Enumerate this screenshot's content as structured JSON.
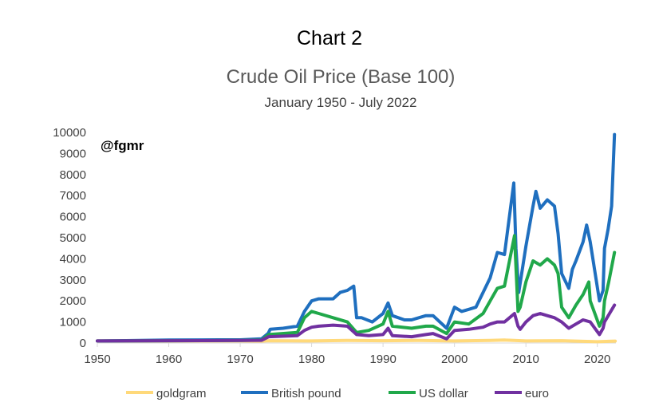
{
  "chart_data": {
    "type": "line",
    "supertitle": "Chart 2",
    "title": "Crude Oil Price (Base 100)",
    "subtitle": "January 1950 - July 2022",
    "annotation": "@fgmr",
    "xlabel": "",
    "ylabel": "",
    "xlim": [
      1950,
      2022.6
    ],
    "ylim": [
      0,
      10000
    ],
    "xticks": [
      1950,
      1960,
      1970,
      1980,
      1990,
      2000,
      2010,
      2020
    ],
    "yticks": [
      0,
      1000,
      2000,
      3000,
      4000,
      5000,
      6000,
      7000,
      8000,
      9000,
      10000
    ],
    "grid": false,
    "legend_position": "bottom",
    "series": [
      {
        "name": "goldgram",
        "color": "#FFD97A",
        "x": [
          1950,
          1960,
          1970,
          1973,
          1974,
          1980,
          1985,
          1990,
          1995,
          2000,
          2005,
          2007,
          2010,
          2015,
          2020,
          2022.5
        ],
        "y": [
          100,
          100,
          100,
          90,
          110,
          100,
          120,
          110,
          120,
          100,
          120,
          140,
          100,
          110,
          60,
          90
        ]
      },
      {
        "name": "British pound",
        "color": "#1F6FBF",
        "x": [
          1950,
          1953,
          1960,
          1967,
          1970,
          1973,
          1973.9,
          1974.2,
          1976,
          1978,
          1979,
          1980,
          1981,
          1983,
          1984,
          1985,
          1985.9,
          1986.3,
          1987,
          1988.5,
          1990,
          1990.7,
          1991.3,
          1993,
          1994,
          1996,
          1997,
          1998.9,
          2000,
          2001,
          2002,
          2003,
          2004,
          2005,
          2006,
          2007,
          2008.3,
          2008.6,
          2009,
          2010,
          2011,
          2011.4,
          2012,
          2013,
          2014,
          2014.5,
          2015,
          2016,
          2016.5,
          2017,
          2018,
          2018.5,
          2019,
          2020.3,
          2020.8,
          2021,
          2021.5,
          2022,
          2022.4
        ],
        "y": [
          100,
          110,
          140,
          150,
          150,
          200,
          450,
          650,
          700,
          800,
          1500,
          2000,
          2100,
          2100,
          2400,
          2500,
          2700,
          1200,
          1200,
          1000,
          1400,
          1900,
          1300,
          1100,
          1100,
          1300,
          1300,
          700,
          1700,
          1500,
          1600,
          1700,
          2400,
          3100,
          4300,
          4200,
          7600,
          4500,
          2400,
          4600,
          6500,
          7200,
          6400,
          6800,
          6500,
          5200,
          3300,
          2600,
          3500,
          3900,
          4800,
          5600,
          4800,
          2000,
          2500,
          4500,
          5400,
          6500,
          9900
        ]
      },
      {
        "name": "US dollar",
        "color": "#20A84A",
        "x": [
          1950,
          1960,
          1970,
          1973,
          1974,
          1978,
          1979,
          1980,
          1981,
          1983,
          1985,
          1986.3,
          1988,
          1990,
          1990.7,
          1991.3,
          1994,
          1996,
          1997,
          1998.9,
          2000,
          2002,
          2004,
          2005,
          2006,
          2007,
          2008.4,
          2008.9,
          2009.2,
          2010,
          2011,
          2012,
          2013,
          2014,
          2014.5,
          2015,
          2016,
          2017,
          2018,
          2018.8,
          2019,
          2020.3,
          2020.8,
          2021,
          2021.6,
          2022.4
        ],
        "y": [
          100,
          110,
          120,
          140,
          400,
          500,
          1200,
          1500,
          1400,
          1200,
          1000,
          500,
          600,
          900,
          1500,
          800,
          700,
          800,
          800,
          450,
          1000,
          900,
          1400,
          2000,
          2600,
          2700,
          5100,
          1500,
          1700,
          2900,
          3900,
          3700,
          4000,
          3700,
          3300,
          1700,
          1200,
          1800,
          2300,
          2900,
          2000,
          800,
          1200,
          2000,
          2900,
          4300
        ]
      },
      {
        "name": "euro",
        "color": "#7030A0",
        "x": [
          1950,
          1960,
          1970,
          1973,
          1974,
          1978,
          1979,
          1980,
          1981,
          1983,
          1985,
          1986.3,
          1988,
          1990,
          1990.7,
          1991.3,
          1994,
          1996,
          1997,
          1998.9,
          2000,
          2002,
          2004,
          2005,
          2006,
          2007,
          2008.4,
          2008.9,
          2009.2,
          2010,
          2011,
          2012,
          2013,
          2014,
          2015,
          2016,
          2017,
          2018,
          2019,
          2020.3,
          2020.8,
          2021,
          2022.4
        ],
        "y": [
          100,
          110,
          120,
          130,
          300,
          350,
          600,
          750,
          800,
          850,
          800,
          400,
          350,
          400,
          700,
          350,
          300,
          400,
          450,
          200,
          600,
          650,
          750,
          900,
          1000,
          1000,
          1400,
          800,
          650,
          1000,
          1300,
          1400,
          1300,
          1200,
          1000,
          700,
          900,
          1100,
          1000,
          400,
          700,
          1000,
          1800
        ]
      }
    ]
  }
}
